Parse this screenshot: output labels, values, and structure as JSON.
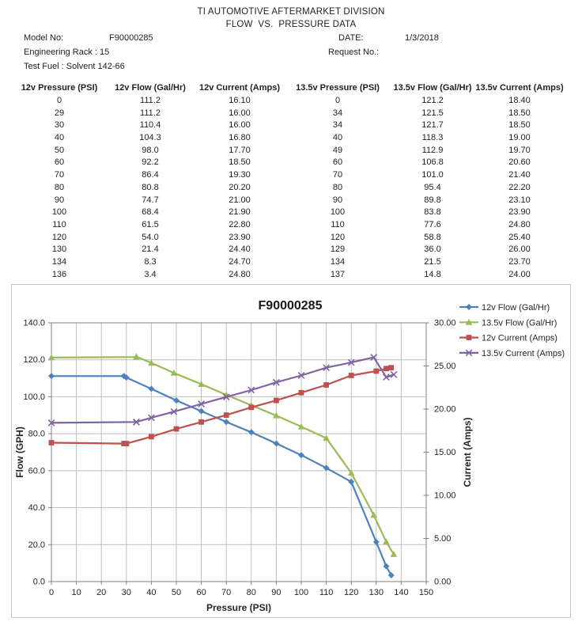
{
  "header": {
    "title_line1": "TI AUTOMOTIVE AFTERMARKET DIVISION",
    "title_line2": "FLOW  VS.  PRESSURE DATA",
    "model_label": "Model No:",
    "model_value": "F90000285",
    "date_label": "DATE:",
    "date_value": "1/3/2018",
    "rack_label": "Engineering Rack : 15",
    "request_label": "Request No.:",
    "fuel_label": "Test Fuel : Solvent 142-66"
  },
  "table": {
    "columns": [
      "12v Pressure (PSI)",
      "12v Flow (Gal/Hr)",
      "12v Current (Amps)",
      "13.5v Pressure (PSI)",
      "13.5v Flow (Gal/Hr)",
      "13.5v Current (Amps)"
    ],
    "rows": [
      [
        "0",
        "111.2",
        "16.10",
        "0",
        "121.2",
        "18.40"
      ],
      [
        "29",
        "111.2",
        "16.00",
        "34",
        "121.5",
        "18.50"
      ],
      [
        "30",
        "110.4",
        "16.00",
        "34",
        "121.7",
        "18.50"
      ],
      [
        "40",
        "104.3",
        "16.80",
        "40",
        "118.3",
        "19.00"
      ],
      [
        "50",
        "98.0",
        "17.70",
        "49",
        "112.9",
        "19.70"
      ],
      [
        "60",
        "92.2",
        "18.50",
        "60",
        "106.8",
        "20.60"
      ],
      [
        "70",
        "86.4",
        "19.30",
        "70",
        "101.0",
        "21.40"
      ],
      [
        "80",
        "80.8",
        "20.20",
        "80",
        "95.4",
        "22.20"
      ],
      [
        "90",
        "74.7",
        "21.00",
        "90",
        "89.8",
        "23.10"
      ],
      [
        "100",
        "68.4",
        "21.90",
        "100",
        "83.8",
        "23.90"
      ],
      [
        "110",
        "61.5",
        "22.80",
        "110",
        "77.6",
        "24.80"
      ],
      [
        "120",
        "54.0",
        "23.90",
        "120",
        "58.8",
        "25.40"
      ],
      [
        "130",
        "21.4",
        "24.40",
        "129",
        "36.0",
        "26.00"
      ],
      [
        "134",
        "8.3",
        "24.70",
        "134",
        "21.5",
        "23.70"
      ],
      [
        "136",
        "3.4",
        "24.80",
        "137",
        "14.8",
        "24.00"
      ]
    ]
  },
  "chart_data": {
    "type": "line",
    "title": "F90000285",
    "xlabel": "Pressure (PSI)",
    "ylabel_left": "Flow (GPH)",
    "ylabel_right": "Current (Amps)",
    "xlim": [
      0,
      150
    ],
    "ylim_left": [
      0,
      140
    ],
    "ylim_right": [
      0,
      30
    ],
    "grid": true,
    "legend_position": "top-right",
    "xtick_labels": [
      "0",
      "10",
      "20",
      "30",
      "40",
      "50",
      "60",
      "70",
      "80",
      "90",
      "100",
      "110",
      "120",
      "130",
      "140",
      "150"
    ],
    "ytick_labels_left": [
      "0.0",
      "20.0",
      "40.0",
      "60.0",
      "80.0",
      "100.0",
      "120.0",
      "140.0"
    ],
    "ytick_labels_right": [
      "0.00",
      "5.00",
      "10.00",
      "15.00",
      "20.00",
      "25.00",
      "30.00"
    ],
    "series": [
      {
        "name": "12v Flow (Gal/Hr)",
        "axis": "left",
        "color": "#4f81bd",
        "marker": "diamond",
        "x": [
          0,
          29,
          30,
          40,
          50,
          60,
          70,
          80,
          90,
          100,
          110,
          120,
          130,
          134,
          136
        ],
        "y": [
          111.2,
          111.2,
          110.4,
          104.3,
          98.0,
          92.2,
          86.4,
          80.8,
          74.7,
          68.4,
          61.5,
          54.0,
          21.4,
          8.3,
          3.4
        ]
      },
      {
        "name": "13.5v Flow (Gal/Hr)",
        "axis": "left",
        "color": "#9bbb59",
        "marker": "triangle",
        "x": [
          0,
          34,
          34,
          40,
          49,
          60,
          70,
          80,
          90,
          100,
          110,
          120,
          129,
          134,
          137
        ],
        "y": [
          121.2,
          121.5,
          121.7,
          118.3,
          112.9,
          106.8,
          101.0,
          95.4,
          89.8,
          83.8,
          77.6,
          58.8,
          36.0,
          21.5,
          14.8
        ]
      },
      {
        "name": "12v Current (Amps)",
        "axis": "right",
        "color": "#c0504d",
        "marker": "square",
        "x": [
          0,
          29,
          30,
          40,
          50,
          60,
          70,
          80,
          90,
          100,
          110,
          120,
          130,
          134,
          136
        ],
        "y": [
          16.1,
          16.0,
          16.0,
          16.8,
          17.7,
          18.5,
          19.3,
          20.2,
          21.0,
          21.9,
          22.8,
          23.9,
          24.4,
          24.7,
          24.8
        ]
      },
      {
        "name": "13.5v Current (Amps)",
        "axis": "right",
        "color": "#8064a2",
        "marker": "x",
        "x": [
          0,
          34,
          34,
          40,
          49,
          60,
          70,
          80,
          90,
          100,
          110,
          120,
          129,
          134,
          137
        ],
        "y": [
          18.4,
          18.5,
          18.5,
          19.0,
          19.7,
          20.6,
          21.4,
          22.2,
          23.1,
          23.9,
          24.8,
          25.4,
          26.0,
          23.7,
          24.0
        ]
      }
    ],
    "colors": {
      "grid": "#bfbfbf",
      "axis": "#808080",
      "text": "#262626",
      "title": "#1a1a1a"
    }
  }
}
